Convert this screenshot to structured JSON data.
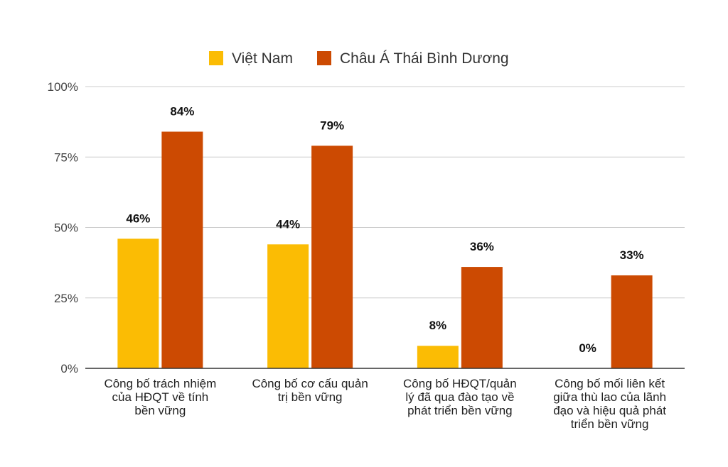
{
  "chart_data": {
    "type": "bar",
    "categories": [
      [
        "Công bố trách nhiệm",
        "của HĐQT về tính",
        "bền vững"
      ],
      [
        "Công bố cơ cấu quản",
        "trị bền vững"
      ],
      [
        "Công bố HĐQT/quản",
        "lý đã qua đào tạo về",
        "phát triển bền vững"
      ],
      [
        "Công bố mối liên kết",
        "giữa thù lao của lãnh",
        "đạo và hiệu quả phát",
        "triển bền vững"
      ]
    ],
    "series": [
      {
        "name": "Việt Nam",
        "color": "#FBBC04",
        "values": [
          46,
          44,
          8,
          0
        ],
        "labels": [
          "46%",
          "44%",
          "8%",
          "0%"
        ]
      },
      {
        "name": "Châu Á Thái Bình Dương",
        "color": "#CC4A02",
        "values": [
          84,
          79,
          36,
          33
        ],
        "labels": [
          "84%",
          "79%",
          "36%",
          "33%"
        ]
      }
    ],
    "ylim": [
      0,
      100
    ],
    "yticks": [
      {
        "value": 0,
        "label": "0%"
      },
      {
        "value": 25,
        "label": "25%"
      },
      {
        "value": 50,
        "label": "50%"
      },
      {
        "value": 75,
        "label": "75%"
      },
      {
        "value": 100,
        "label": "100%"
      }
    ],
    "grid": true,
    "legend": "top-center",
    "title": "",
    "xlabel": "",
    "ylabel": ""
  }
}
